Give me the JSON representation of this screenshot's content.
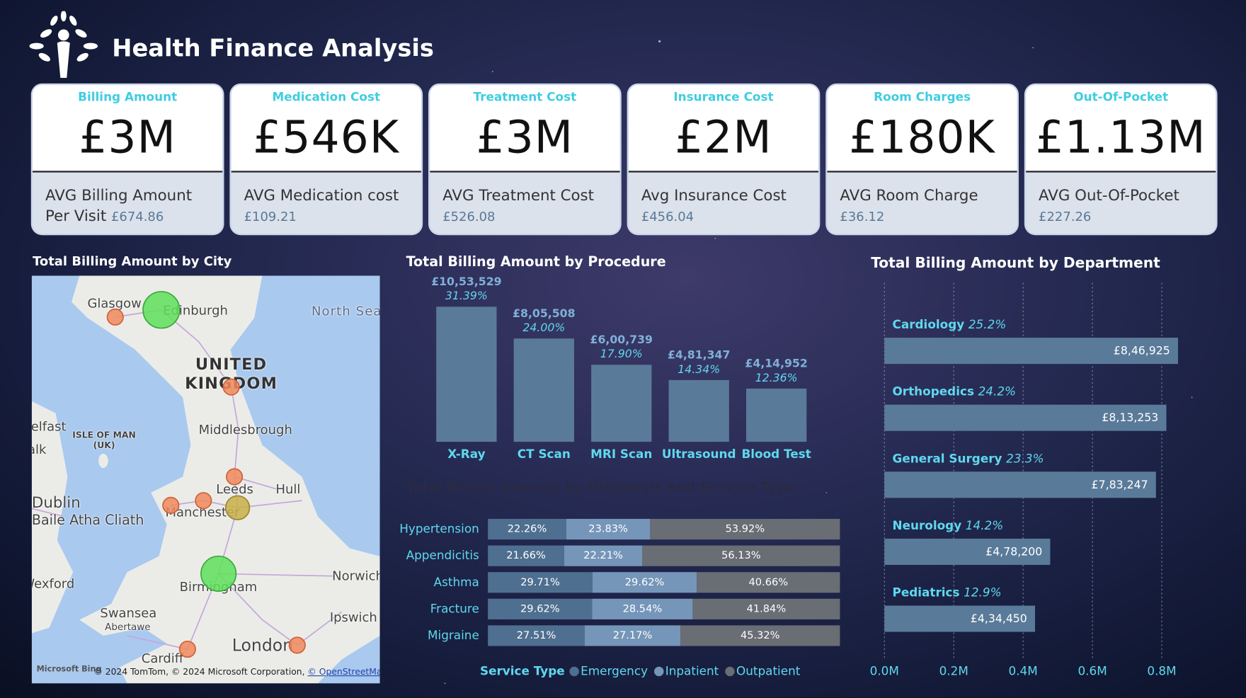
{
  "header": {
    "title": "Health Finance Analysis"
  },
  "kpis": [
    {
      "title": "Billing Amount",
      "value": "£3M",
      "label": "AVG Billing Amount Per Visit",
      "average": "£674.86"
    },
    {
      "title": "Medication Cost",
      "value": "£546K",
      "label": "AVG Medication cost",
      "average": "£109.21"
    },
    {
      "title": "Treatment Cost",
      "value": "£3M",
      "label": "AVG Treatment Cost",
      "average": "£526.08"
    },
    {
      "title": "Insurance Cost",
      "value": "£2M",
      "label": "Avg Insurance Cost",
      "average": "£456.04"
    },
    {
      "title": "Room Charges",
      "value": "£180K",
      "label": "AVG Room Charge",
      "average": "£36.12"
    },
    {
      "title": "Out-Of-Pocket",
      "value": "£1.13M",
      "label": "AVG Out-Of-Pocket",
      "average": "£227.26"
    }
  ],
  "map": {
    "title": "Total Billing Amount by City",
    "labels": [
      "Glasgow",
      "Edinburgh",
      "North Sea",
      "UNITED KINGDOM",
      "Belfast",
      "Dundalk",
      "ISLE OF MAN (UK)",
      "Middlesbrough",
      "Leeds",
      "Hull",
      "Dublin",
      "Baile Atha Cliath",
      "Manchester",
      "Norwich",
      "Wexford",
      "Swansea",
      "Abertawe",
      "Birmingham",
      "Ipswich",
      "London",
      "Cardiff"
    ],
    "provider": "Microsoft Bing",
    "attribution": "© 2024 TomTom, © 2024 Microsoft Corporation, ",
    "attribution_link": "© OpenStreetMap"
  },
  "chart_data": [
    {
      "type": "bar",
      "title": "Total Billing Amount by Procedure",
      "color": "#5a7a99",
      "categories": [
        "X-Ray",
        "CT Scan",
        "MRI Scan",
        "Ultrasound",
        "Blood Test"
      ],
      "values": [
        1053529,
        805508,
        600739,
        481347,
        414952
      ],
      "value_labels": [
        "£10,53,529",
        "£8,05,508",
        "£6,00,739",
        "£4,81,347",
        "£4,14,952"
      ],
      "shares": [
        31.39,
        24.0,
        17.9,
        14.34,
        12.36
      ],
      "share_labels": [
        "31.39%",
        "24.00%",
        "17.90%",
        "14.34%",
        "12.36%"
      ]
    },
    {
      "type": "stacked-hbar",
      "title": "Total Billing Amount by Diagnosis and Service Type",
      "legend_title": "Service Type",
      "categories": [
        "Hypertension",
        "Appendicitis",
        "Asthma",
        "Fracture",
        "Migraine"
      ],
      "series": [
        {
          "name": "Emergency",
          "color": "#4f6f90",
          "values": [
            22.26,
            21.66,
            29.71,
            29.62,
            27.51
          ],
          "value_labels": [
            "22.26%",
            "21.66%",
            "29.71%",
            "29.62%",
            "27.51%"
          ]
        },
        {
          "name": "Inpatient",
          "color": "#7596b9",
          "values": [
            23.83,
            22.21,
            29.62,
            28.54,
            27.17
          ],
          "value_labels": [
            "23.83%",
            "22.21%",
            "29.62%",
            "28.54%",
            "27.17%"
          ]
        },
        {
          "name": "Outpatient",
          "color": "#696d74",
          "values": [
            53.92,
            56.13,
            40.66,
            41.84,
            45.32
          ],
          "value_labels": [
            "53.92%",
            "56.13%",
            "40.66%",
            "41.84%",
            "45.32%"
          ]
        }
      ]
    },
    {
      "type": "hbar",
      "title": "Total Billing Amount by Department",
      "color": "#5a7a99",
      "categories": [
        "Cardiology",
        "Orthopedics",
        "General Surgery",
        "Neurology",
        "Pediatrics"
      ],
      "values": [
        846925,
        813253,
        783247,
        478200,
        434450
      ],
      "value_labels": [
        "£8,46,925",
        "£8,13,253",
        "£7,83,247",
        "£4,78,200",
        "£4,34,450"
      ],
      "shares": [
        25.2,
        24.2,
        23.3,
        14.2,
        12.9
      ],
      "share_labels": [
        "25.2%",
        "24.2%",
        "23.3%",
        "14.2%",
        "12.9%"
      ],
      "xlim": [
        0,
        850000
      ],
      "xticks": [
        {
          "value": 0,
          "label": "0.0M"
        },
        {
          "value": 200000,
          "label": "0.2M"
        },
        {
          "value": 400000,
          "label": "0.4M"
        },
        {
          "value": 600000,
          "label": "0.6M"
        },
        {
          "value": 800000,
          "label": "0.8M"
        }
      ],
      "grid": true
    }
  ]
}
